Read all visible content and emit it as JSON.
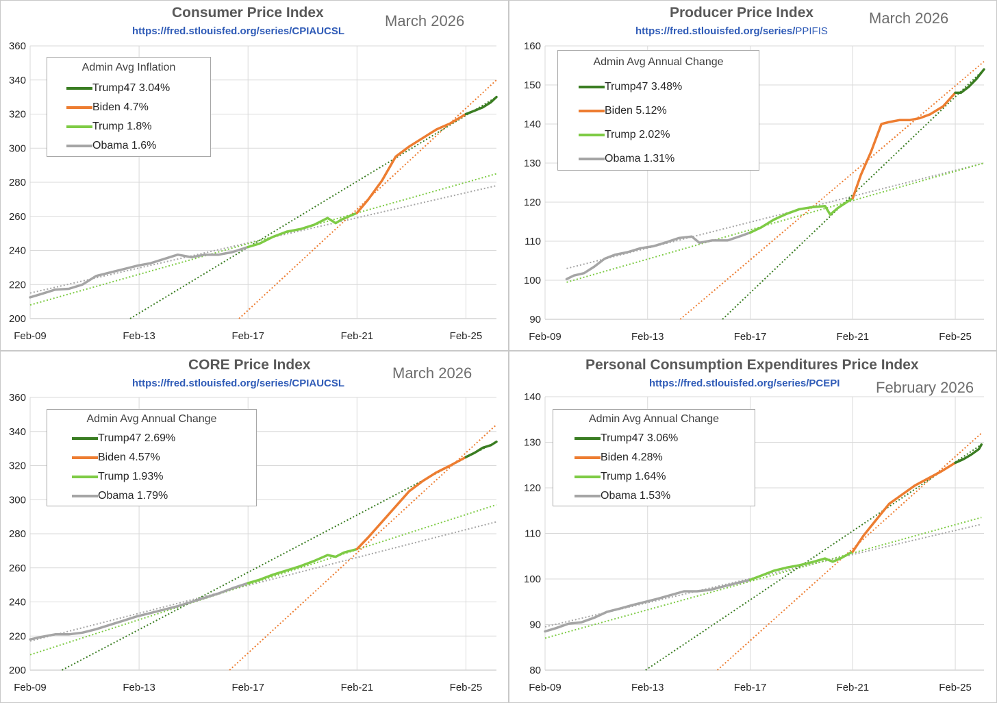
{
  "colors": {
    "trump47": "#3a7d22",
    "biden": "#ed7d31",
    "trump": "#7ecb45",
    "obama": "#a5a5a5",
    "grid": "#d9d9d9",
    "axis": "#bfbfbf"
  },
  "chart_data": [
    {
      "type": "line",
      "title": "Consumer Price Index",
      "link": "https://fred.stlouisfed.org/series/CPIAUCSL",
      "date_label": "March 2026",
      "legend_title": "Admin Avg Inflation",
      "legend": [
        {
          "key": "trump47",
          "label": "Trump47 3.04%"
        },
        {
          "key": "biden",
          "label": "Biden 4.7%"
        },
        {
          "key": "trump",
          "label": "Trump 1.8%"
        },
        {
          "key": "obama",
          "label": "Obama 1.6%"
        }
      ],
      "xlim": [
        2009.08,
        2026.2
      ],
      "ylim": [
        200,
        360
      ],
      "yticks": [
        200,
        220,
        240,
        260,
        280,
        300,
        320,
        340,
        360
      ],
      "xticks": [
        {
          "x": 2009.08,
          "label": "Feb-09"
        },
        {
          "x": 2013.08,
          "label": "Feb-13"
        },
        {
          "x": 2017.08,
          "label": "Feb-17"
        },
        {
          "x": 2021.08,
          "label": "Feb-21"
        },
        {
          "x": 2025.08,
          "label": "Feb-25"
        }
      ],
      "series": [
        {
          "name": "Obama",
          "key": "obama",
          "x": [
            2009.08,
            2009.5,
            2010,
            2010.5,
            2011,
            2011.5,
            2012,
            2012.5,
            2013,
            2013.5,
            2014,
            2014.5,
            2015,
            2015.5,
            2016,
            2016.5,
            2017.08
          ],
          "values": [
            212.5,
            214.5,
            217,
            217.5,
            220,
            225,
            227,
            229,
            231,
            232.5,
            235,
            237.5,
            236,
            237.5,
            237.5,
            239,
            242
          ]
        },
        {
          "name": "Trump",
          "key": "trump",
          "x": [
            2017.08,
            2017.5,
            2018,
            2018.5,
            2019,
            2019.5,
            2020,
            2020.3,
            2020.5,
            2021.08
          ],
          "values": [
            242,
            244,
            248,
            251,
            252.5,
            255,
            259,
            256,
            258,
            262
          ]
        },
        {
          "name": "Biden",
          "key": "biden",
          "x": [
            2021.08,
            2021.5,
            2022,
            2022.5,
            2023,
            2023.5,
            2024,
            2024.5,
            2025.08
          ],
          "values": [
            262,
            270,
            281,
            295,
            301,
            306,
            311,
            314.5,
            320
          ]
        },
        {
          "name": "Trump47",
          "key": "trump47",
          "x": [
            2025.08,
            2025.4,
            2025.7,
            2026.0,
            2026.2
          ],
          "values": [
            320,
            322,
            324,
            327,
            330
          ]
        }
      ],
      "trends": [
        {
          "key": "obama",
          "x": [
            2009.08,
            2026.2
          ],
          "values": [
            215,
            278
          ]
        },
        {
          "key": "trump",
          "x": [
            2009.08,
            2026.2
          ],
          "values": [
            208,
            285
          ]
        },
        {
          "key": "trump47",
          "x": [
            2012.75,
            2026.2
          ],
          "values": [
            200,
            330
          ]
        },
        {
          "key": "biden",
          "x": [
            2016.75,
            2026.2
          ],
          "values": [
            200,
            340
          ]
        }
      ]
    },
    {
      "type": "line",
      "title": "Producer Price Index",
      "link_base": "https://fred.stlouisfed.org/series/",
      "link_series": "PPIFIS",
      "date_label": "March 2026",
      "legend_title": "Admin Avg Annual Change",
      "legend": [
        {
          "key": "trump47",
          "label": "Trump47 3.48%"
        },
        {
          "key": "biden",
          "label": "Biden 5.12%"
        },
        {
          "key": "trump",
          "label": "Trump 2.02%"
        },
        {
          "key": "obama",
          "label": "Obama 1.31%"
        }
      ],
      "xlim": [
        2009.08,
        2026.2
      ],
      "ylim": [
        90,
        160
      ],
      "yticks": [
        90,
        100,
        110,
        120,
        130,
        140,
        150,
        160
      ],
      "xticks": [
        {
          "x": 2009.08,
          "label": "Feb-09"
        },
        {
          "x": 2013.08,
          "label": "Feb-13"
        },
        {
          "x": 2017.08,
          "label": "Feb-17"
        },
        {
          "x": 2021.08,
          "label": "Feb-21"
        },
        {
          "x": 2025.08,
          "label": "Feb-25"
        }
      ],
      "series": [
        {
          "name": "Obama",
          "key": "obama",
          "x": [
            2009.92,
            2010.2,
            2010.6,
            2011,
            2011.4,
            2011.8,
            2012.3,
            2012.8,
            2013.3,
            2013.8,
            2014.3,
            2014.8,
            2015.1,
            2015.6,
            2016.2,
            2016.7,
            2017.08
          ],
          "values": [
            100.3,
            101.2,
            101.8,
            103.5,
            105.5,
            106.5,
            107.2,
            108.2,
            108.7,
            109.7,
            110.8,
            111.2,
            109.6,
            110.2,
            110.2,
            111.3,
            112.2
          ]
        },
        {
          "name": "Trump",
          "key": "trump",
          "x": [
            2017.08,
            2017.5,
            2018,
            2018.5,
            2019,
            2019.5,
            2020,
            2020.2,
            2020.5,
            2021.08
          ],
          "values": [
            112.2,
            113.5,
            115.5,
            117,
            118.2,
            118.7,
            119,
            116.8,
            118.5,
            121
          ]
        },
        {
          "name": "Biden",
          "key": "biden",
          "x": [
            2021.08,
            2021.4,
            2021.8,
            2022.2,
            2022.5,
            2022.9,
            2023.3,
            2023.7,
            2024.1,
            2024.6,
            2025.08
          ],
          "values": [
            121,
            127,
            133,
            140,
            140.5,
            141,
            141,
            141.5,
            142.5,
            144.5,
            148
          ]
        },
        {
          "name": "Trump47",
          "key": "trump47",
          "x": [
            2025.08,
            2025.3,
            2025.6,
            2025.9,
            2026.2
          ],
          "values": [
            148,
            148,
            149.5,
            151.5,
            154
          ]
        }
      ],
      "trends": [
        {
          "key": "obama",
          "x": [
            2009.92,
            2026.2
          ],
          "values": [
            103,
            130
          ]
        },
        {
          "key": "trump",
          "x": [
            2009.92,
            2026.2
          ],
          "values": [
            99.5,
            130
          ]
        },
        {
          "key": "biden",
          "x": [
            2014.35,
            2026.2
          ],
          "values": [
            90,
            156
          ]
        },
        {
          "key": "trump47",
          "x": [
            2016.0,
            2026.2
          ],
          "values": [
            90,
            154
          ]
        }
      ]
    },
    {
      "type": "line",
      "title": "CORE Price Index",
      "link": "https://fred.stlouisfed.org/series/CPIAUCSL",
      "date_label": "March 2026",
      "legend_title": "Admin Avg Annual Change",
      "legend": [
        {
          "key": "trump47",
          "label": "Trump47 2.69%"
        },
        {
          "key": "biden",
          "label": "Biden 4.57%"
        },
        {
          "key": "trump",
          "label": "Trump 1.93%"
        },
        {
          "key": "obama",
          "label": "Obama 1.79%"
        }
      ],
      "xlim": [
        2009.08,
        2026.2
      ],
      "ylim": [
        200,
        360
      ],
      "yticks": [
        200,
        220,
        240,
        260,
        280,
        300,
        320,
        340,
        360
      ],
      "xticks": [
        {
          "x": 2009.08,
          "label": "Feb-09"
        },
        {
          "x": 2013.08,
          "label": "Feb-13"
        },
        {
          "x": 2017.08,
          "label": "Feb-17"
        },
        {
          "x": 2021.08,
          "label": "Feb-21"
        },
        {
          "x": 2025.08,
          "label": "Feb-25"
        }
      ],
      "series": [
        {
          "name": "Obama",
          "key": "obama",
          "x": [
            2009.08,
            2009.5,
            2010,
            2010.5,
            2011,
            2011.5,
            2012,
            2012.5,
            2013,
            2013.5,
            2014,
            2014.5,
            2015,
            2015.5,
            2016,
            2016.5,
            2017.08
          ],
          "values": [
            218,
            219.5,
            221,
            221,
            222,
            224,
            226.5,
            229,
            231.5,
            233.5,
            235.5,
            237.5,
            240,
            242.5,
            245,
            248,
            251
          ]
        },
        {
          "name": "Trump",
          "key": "trump",
          "x": [
            2017.08,
            2017.5,
            2018,
            2018.5,
            2019,
            2019.5,
            2020,
            2020.3,
            2020.6,
            2021.08
          ],
          "values": [
            251,
            253,
            256,
            258.5,
            261,
            264,
            267.5,
            266.5,
            269,
            271
          ]
        },
        {
          "name": "Biden",
          "key": "biden",
          "x": [
            2021.08,
            2021.5,
            2022,
            2022.5,
            2023,
            2023.5,
            2024,
            2024.5,
            2025.08
          ],
          "values": [
            271,
            278,
            287,
            296,
            305,
            311,
            316,
            320,
            325
          ]
        },
        {
          "name": "Trump47",
          "key": "trump47",
          "x": [
            2025.08,
            2025.4,
            2025.7,
            2026.0,
            2026.2
          ],
          "values": [
            325,
            327.5,
            330.5,
            332,
            334
          ]
        }
      ],
      "trends": [
        {
          "key": "obama",
          "x": [
            2009.08,
            2026.2
          ],
          "values": [
            217,
            287
          ]
        },
        {
          "key": "trump",
          "x": [
            2009.08,
            2026.2
          ],
          "values": [
            209,
            297
          ]
        },
        {
          "key": "trump47",
          "x": [
            2010.25,
            2026.2
          ],
          "values": [
            200,
            334
          ]
        },
        {
          "key": "biden",
          "x": [
            2016.4,
            2026.2
          ],
          "values": [
            200,
            344
          ]
        }
      ]
    },
    {
      "type": "line",
      "title": "Personal Consumption Expenditures Price Index",
      "link": "https://fred.stlouisfed.org/series/PCEPI",
      "date_label": "February 2026",
      "legend_title": "Admin Avg Annual Change",
      "legend": [
        {
          "key": "trump47",
          "label": "Trump47 3.06%"
        },
        {
          "key": "biden",
          "label": "Biden 4.28%"
        },
        {
          "key": "trump",
          "label": "Trump 1.64%"
        },
        {
          "key": "obama",
          "label": "Obama 1.53%"
        }
      ],
      "xlim": [
        2009.08,
        2026.2
      ],
      "ylim": [
        80,
        140
      ],
      "yticks": [
        80,
        90,
        100,
        110,
        120,
        130,
        140
      ],
      "xticks": [
        {
          "x": 2009.08,
          "label": "Feb-09"
        },
        {
          "x": 2013.08,
          "label": "Feb-13"
        },
        {
          "x": 2017.08,
          "label": "Feb-17"
        },
        {
          "x": 2021.08,
          "label": "Feb-21"
        },
        {
          "x": 2025.08,
          "label": "Feb-25"
        }
      ],
      "series": [
        {
          "name": "Obama",
          "key": "obama",
          "x": [
            2009.08,
            2009.5,
            2010,
            2010.5,
            2011,
            2011.5,
            2012,
            2012.5,
            2013,
            2013.5,
            2014,
            2014.5,
            2015,
            2015.5,
            2016,
            2016.5,
            2017.08
          ],
          "values": [
            88.5,
            89.2,
            90.2,
            90.5,
            91.5,
            92.8,
            93.5,
            94.3,
            95,
            95.7,
            96.5,
            97.3,
            97.3,
            97.6,
            98.3,
            99,
            99.8
          ]
        },
        {
          "name": "Trump",
          "key": "trump",
          "x": [
            2017.08,
            2017.5,
            2018,
            2018.5,
            2019,
            2019.5,
            2020,
            2020.3,
            2020.6,
            2021.08
          ],
          "values": [
            99.8,
            100.7,
            101.8,
            102.5,
            103,
            103.7,
            104.5,
            103.8,
            104.5,
            106
          ]
        },
        {
          "name": "Biden",
          "key": "biden",
          "x": [
            2021.08,
            2021.5,
            2022,
            2022.5,
            2023,
            2023.5,
            2024,
            2024.5,
            2025.08
          ],
          "values": [
            106,
            109.5,
            113,
            116.5,
            118.5,
            120.5,
            122,
            123.5,
            125.5
          ]
        },
        {
          "name": "Trump47",
          "key": "trump47",
          "x": [
            2025.08,
            2025.4,
            2025.7,
            2026.0,
            2026.1
          ],
          "values": [
            125.5,
            126.3,
            127.3,
            128.5,
            129.5
          ]
        }
      ],
      "trends": [
        {
          "key": "obama",
          "x": [
            2009.08,
            2026.1
          ],
          "values": [
            89.5,
            112
          ]
        },
        {
          "key": "trump",
          "x": [
            2009.08,
            2026.1
          ],
          "values": [
            87,
            113.5
          ]
        },
        {
          "key": "trump47",
          "x": [
            2013.0,
            2026.1
          ],
          "values": [
            80,
            129.5
          ]
        },
        {
          "key": "biden",
          "x": [
            2015.8,
            2026.1
          ],
          "values": [
            80,
            132
          ]
        }
      ]
    }
  ]
}
